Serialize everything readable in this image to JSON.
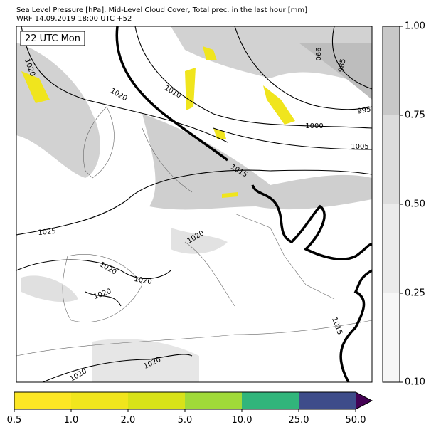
{
  "header": {
    "title": "Sea Level Pressure [hPa], Mid-Level Cloud Cover, Total prec. in the last hour [mm]",
    "subtitle": "WRF 14.09.2019 18:00 UTC +52"
  },
  "map": {
    "time_label": "22 UTC Mon",
    "contour_labels": [
      "1020",
      "1020",
      "1010",
      "1015",
      "1000",
      "995",
      "1005",
      "990",
      "985",
      "1025",
      "1020",
      "1020",
      "1020",
      "1020",
      "1020",
      "1020",
      "1015"
    ]
  },
  "cloud_colorbar": {
    "colors": [
      "#f7f7f7",
      "#ebebeb",
      "#dcdcdc",
      "#c8c8c8"
    ],
    "ticks": [
      {
        "value": 0.1,
        "label": "0.10"
      },
      {
        "value": 0.25,
        "label": "0.25"
      },
      {
        "value": 0.5,
        "label": "0.50"
      },
      {
        "value": 0.75,
        "label": "0.75"
      },
      {
        "value": 1,
        "label": "1.00"
      }
    ]
  },
  "precip_colorbar": {
    "colors": [
      "#fde725",
      "#f1e51d",
      "#d8e219",
      "#a0da39",
      "#31b57b",
      "#3e4c8a"
    ],
    "extend_color": "#440154",
    "ticks": [
      {
        "value": 0.5,
        "label": "0.5"
      },
      {
        "value": 1,
        "label": "1.0"
      },
      {
        "value": 2,
        "label": "2.0"
      },
      {
        "value": 5,
        "label": "5.0"
      },
      {
        "value": 10,
        "label": "10.0"
      },
      {
        "value": 25,
        "label": "25.0"
      },
      {
        "value": 50,
        "label": "50.0"
      }
    ]
  }
}
